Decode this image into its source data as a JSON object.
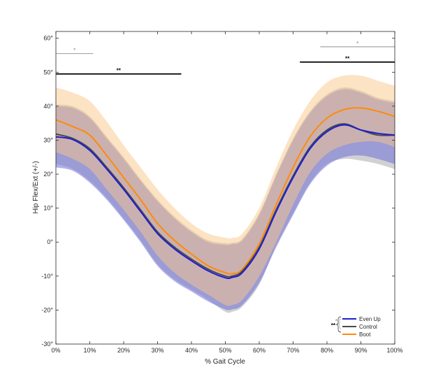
{
  "chart_data": {
    "type": "line",
    "title": "",
    "xlabel": "% Gait Cycle",
    "ylabel": "Hip Flex/Ext (+/-)",
    "xlim": [
      0,
      100
    ],
    "ylim": [
      -30,
      62
    ],
    "x_ticks": [
      0,
      10,
      20,
      30,
      40,
      50,
      60,
      70,
      80,
      90,
      100
    ],
    "x_tick_labels": [
      "0%",
      "10%",
      "20%",
      "30%",
      "40%",
      "50%",
      "60%",
      "70%",
      "80%",
      "90%",
      "100%"
    ],
    "y_ticks": [
      -30,
      -20,
      -10,
      0,
      10,
      20,
      30,
      40,
      50,
      60
    ],
    "y_tick_labels": [
      "-30°",
      "-20°",
      "-10°",
      "0°",
      "10°",
      "20°",
      "30°",
      "40°",
      "50°",
      "60°"
    ],
    "grid": false,
    "legend_position": "bottom-right",
    "x": [
      0,
      5,
      10,
      15,
      20,
      25,
      30,
      35,
      40,
      45,
      50,
      52,
      55,
      60,
      65,
      70,
      75,
      80,
      85,
      90,
      95,
      100
    ],
    "series": [
      {
        "name": "Even Up",
        "color": "#1f1fd0",
        "band_color": "#6f6fd8",
        "values": [
          31,
          30.2,
          27,
          21.5,
          15.5,
          9,
          2.5,
          -2,
          -5.5,
          -8.5,
          -10.5,
          -10.4,
          -9,
          -2,
          9,
          19,
          27.5,
          32.5,
          34.5,
          33,
          32,
          31.5
        ],
        "upper": [
          40,
          39.5,
          36.5,
          30.5,
          24.5,
          18,
          12,
          7,
          3,
          0,
          -0.8,
          -0.6,
          0.5,
          8,
          19.5,
          30,
          38,
          43,
          45,
          44,
          42,
          41
        ],
        "lower": [
          22,
          21,
          17.5,
          12.5,
          6.5,
          0,
          -7,
          -11.5,
          -14.5,
          -17.5,
          -19.8,
          -19.8,
          -18.5,
          -12,
          -1.5,
          8,
          17,
          22.5,
          25,
          25.5,
          24.5,
          23
        ]
      },
      {
        "name": "Control",
        "color": "#4a4a4a",
        "band_color": "#9a9a9a",
        "values": [
          31.8,
          30.5,
          27.5,
          22,
          16,
          9.5,
          3,
          -1.5,
          -5,
          -8,
          -10,
          -10,
          -8.5,
          -1.5,
          9.5,
          19.5,
          28,
          33,
          34.8,
          33,
          31.5,
          31.5
        ],
        "upper": [
          40.5,
          40,
          37,
          31,
          25,
          18.5,
          12.5,
          7.5,
          3.5,
          0.5,
          -0.3,
          -0.2,
          1,
          8.5,
          20,
          30.5,
          38.5,
          43.5,
          45.5,
          44.5,
          42.5,
          41.5
        ],
        "lower": [
          23,
          21.5,
          18,
          13,
          7,
          0.5,
          -6.5,
          -11,
          -14,
          -17,
          -20.5,
          -20.5,
          -19,
          -12.5,
          -1,
          8.5,
          17.5,
          23,
          24.5,
          24,
          23,
          21.5
        ]
      },
      {
        "name": "Boot",
        "color": "#ff8a0a",
        "band_color": "#f9c88a",
        "values": [
          36,
          34,
          31.5,
          25.5,
          19,
          12.5,
          5.5,
          0.5,
          -3.5,
          -7,
          -9,
          -9.3,
          -8,
          -0.5,
          11,
          22,
          31,
          36.5,
          39,
          39.5,
          38.5,
          37
        ],
        "upper": [
          45.5,
          44,
          41.5,
          35.5,
          28.5,
          22,
          15.5,
          10,
          5.5,
          2.5,
          1.3,
          1.2,
          2.5,
          10,
          22,
          33,
          41.5,
          47,
          49,
          49,
          47.5,
          46
        ],
        "lower": [
          26.5,
          24.5,
          21.5,
          15.5,
          9.5,
          3,
          -4,
          -9,
          -12.5,
          -15.5,
          -18.5,
          -18.5,
          -17,
          -10,
          0,
          11,
          20.5,
          26,
          28.5,
          29.5,
          29.5,
          28
        ]
      }
    ],
    "significance": [
      {
        "x_start": 0,
        "x_end": 11,
        "y": 55.5,
        "color": "#a6a6a6",
        "label": "*"
      },
      {
        "x_start": 0,
        "x_end": 37,
        "y": 49.5,
        "color": "#000000",
        "label": "**"
      },
      {
        "x_start": 78,
        "x_end": 100,
        "y": 57.5,
        "color": "#a6a6a6",
        "label": "*"
      },
      {
        "x_start": 72,
        "x_end": 100,
        "y": 53,
        "color": "#000000",
        "label": "**"
      }
    ],
    "legend_bracket": {
      "gray_mark": "*",
      "black_mark": "**"
    }
  }
}
